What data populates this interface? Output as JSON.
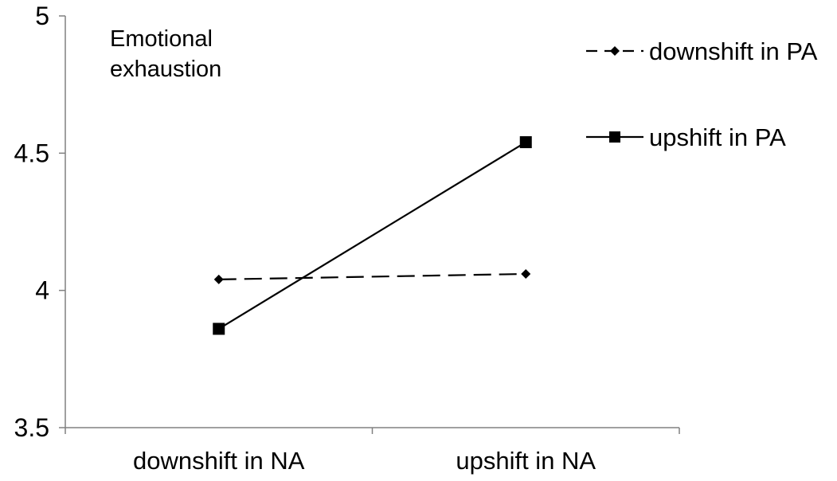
{
  "chart_data": {
    "type": "line",
    "title": "",
    "xlabel": "",
    "ylabel": "",
    "annotation": [
      "Emotional",
      "exhaustion"
    ],
    "categories": [
      "downshift in NA",
      "upshift in NA"
    ],
    "ylim": [
      3.5,
      5
    ],
    "yticks": [
      3.5,
      4,
      4.5,
      5
    ],
    "ytick_labels": [
      "3.5",
      "4",
      "4.5",
      "5"
    ],
    "grid": false,
    "legend_position": "top-right",
    "series": [
      {
        "name": "downshift in PA",
        "values": [
          4.04,
          4.06
        ],
        "line_style": "dashed",
        "marker": "diamond",
        "color": "#000000"
      },
      {
        "name": "upshift in PA",
        "values": [
          3.86,
          4.54
        ],
        "line_style": "solid",
        "marker": "square",
        "color": "#000000"
      }
    ]
  }
}
